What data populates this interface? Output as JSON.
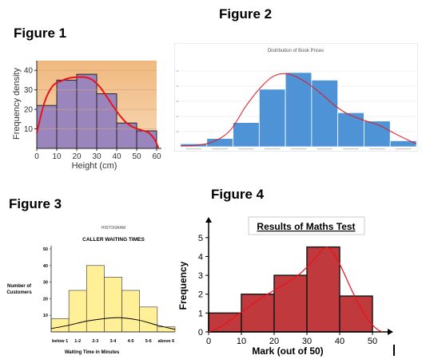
{
  "figure_labels": [
    "Figure 1",
    "Figure 2",
    "Figure 3",
    "Figure 4"
  ],
  "chart_data": [
    {
      "type": "bar",
      "panel": "Figure 1",
      "title": "",
      "xlabel": "Height (cm)",
      "ylabel": "Frequency density",
      "x_ticks": [
        "0",
        "10",
        "20",
        "30",
        "40",
        "50",
        "60"
      ],
      "y_ticks": [
        "10",
        "20",
        "30",
        "40"
      ],
      "xlim": [
        0,
        60
      ],
      "ylim": [
        0,
        45
      ],
      "bins": [
        {
          "from": 0,
          "to": 10,
          "value": 22
        },
        {
          "from": 10,
          "to": 20,
          "value": 35
        },
        {
          "from": 20,
          "to": 30,
          "value": 38
        },
        {
          "from": 30,
          "to": 40,
          "value": 28
        },
        {
          "from": 40,
          "to": 50,
          "value": 13
        },
        {
          "from": 50,
          "to": 60,
          "value": 9
        }
      ],
      "curve": [
        [
          0,
          8
        ],
        [
          4,
          24
        ],
        [
          8,
          32
        ],
        [
          12,
          34.5
        ],
        [
          16,
          36
        ],
        [
          20,
          36.5
        ],
        [
          24,
          36.5
        ],
        [
          28,
          35
        ],
        [
          32,
          31
        ],
        [
          36,
          25
        ],
        [
          40,
          19
        ],
        [
          44,
          14
        ],
        [
          48,
          11
        ],
        [
          52,
          9.5
        ],
        [
          56,
          8
        ],
        [
          59,
          4.5
        ],
        [
          61,
          0
        ]
      ],
      "colors": {
        "bar": "#9b85bd",
        "bar_edge": "#222222",
        "curve": "#e8131b",
        "bg_top": "#f0b87f",
        "bg_bottom": "#f7d8b4"
      }
    },
    {
      "type": "bar",
      "panel": "Figure 2",
      "title": "Distribution of Book Prices",
      "xlabel": "",
      "ylabel": "",
      "ylim": [
        0,
        600
      ],
      "values": [
        20,
        55,
        160,
        380,
        490,
        440,
        225,
        170,
        40
      ],
      "curve": [
        [
          0.0,
          6
        ],
        [
          0.7,
          12
        ],
        [
          1.3,
          38
        ],
        [
          1.9,
          110
        ],
        [
          2.5,
          270
        ],
        [
          3.1,
          400
        ],
        [
          3.6,
          470
        ],
        [
          4.1,
          480
        ],
        [
          4.7,
          435
        ],
        [
          5.3,
          360
        ],
        [
          5.9,
          270
        ],
        [
          6.4,
          215
        ],
        [
          7.0,
          175
        ],
        [
          7.6,
          140
        ],
        [
          8.2,
          85
        ],
        [
          8.8,
          35
        ],
        [
          9.0,
          20
        ]
      ],
      "colors": {
        "bar": "#4d93d6",
        "bar_edge": "#ffffff",
        "curve": "#e8131b",
        "grid": "#e3e3e3"
      }
    },
    {
      "type": "bar",
      "panel": "Figure 3",
      "title": "CALLER WAITING TIMES",
      "superscript_title": "HISTOGRAM",
      "xlabel": "Waiting Time in Minutes",
      "ylabel": "Number of Customers",
      "categories": [
        "below 1",
        "1-2",
        "2-3",
        "3-4",
        "4-5",
        "5-6",
        "above 6"
      ],
      "values": [
        8,
        25,
        40,
        33,
        25,
        15,
        3
      ],
      "y_ticks": [
        "10",
        "20",
        "30",
        "40",
        "50"
      ],
      "ylim": [
        0,
        50
      ],
      "curve": [
        [
          0,
          2
        ],
        [
          1,
          4
        ],
        [
          2,
          6.5
        ],
        [
          3,
          8
        ],
        [
          3.5,
          8.5
        ],
        [
          4,
          8.5
        ],
        [
          5,
          7
        ],
        [
          6,
          4
        ],
        [
          7,
          1.5
        ]
      ],
      "colors": {
        "bar": "#ffef96",
        "bar_edge": "#333333",
        "curve": "#000000"
      }
    },
    {
      "type": "bar",
      "panel": "Figure 4",
      "title": "Results of Maths Test",
      "xlabel": "Mark (out of 50)",
      "ylabel": "Frequency",
      "x_ticks": [
        "0",
        "10",
        "20",
        "30",
        "40",
        "50"
      ],
      "y_ticks": [
        "0",
        "1",
        "2",
        "3",
        "4",
        "5"
      ],
      "xlim": [
        0,
        50
      ],
      "ylim": [
        0,
        5.5
      ],
      "bins": [
        {
          "from": 0,
          "to": 10,
          "value": 1
        },
        {
          "from": 10,
          "to": 20,
          "value": 2
        },
        {
          "from": 20,
          "to": 30,
          "value": 3
        },
        {
          "from": 30,
          "to": 40,
          "value": 4.5
        },
        {
          "from": 40,
          "to": 50,
          "value": 1.9
        }
      ],
      "curve": [
        [
          0,
          0
        ],
        [
          4,
          0.3
        ],
        [
          8,
          0.8
        ],
        [
          12,
          1.3
        ],
        [
          16,
          1.8
        ],
        [
          20,
          2.2
        ],
        [
          24,
          2.6
        ],
        [
          28,
          3.1
        ],
        [
          32,
          3.8
        ],
        [
          35,
          4.4
        ],
        [
          37,
          4.4
        ],
        [
          40,
          3.6
        ],
        [
          44,
          2.1
        ],
        [
          48,
          0.8
        ],
        [
          51,
          0.2
        ],
        [
          53,
          0
        ]
      ],
      "colors": {
        "bar": "#c0393d",
        "bar_edge": "#1a1a1a",
        "curve": "#e8131b"
      }
    }
  ]
}
